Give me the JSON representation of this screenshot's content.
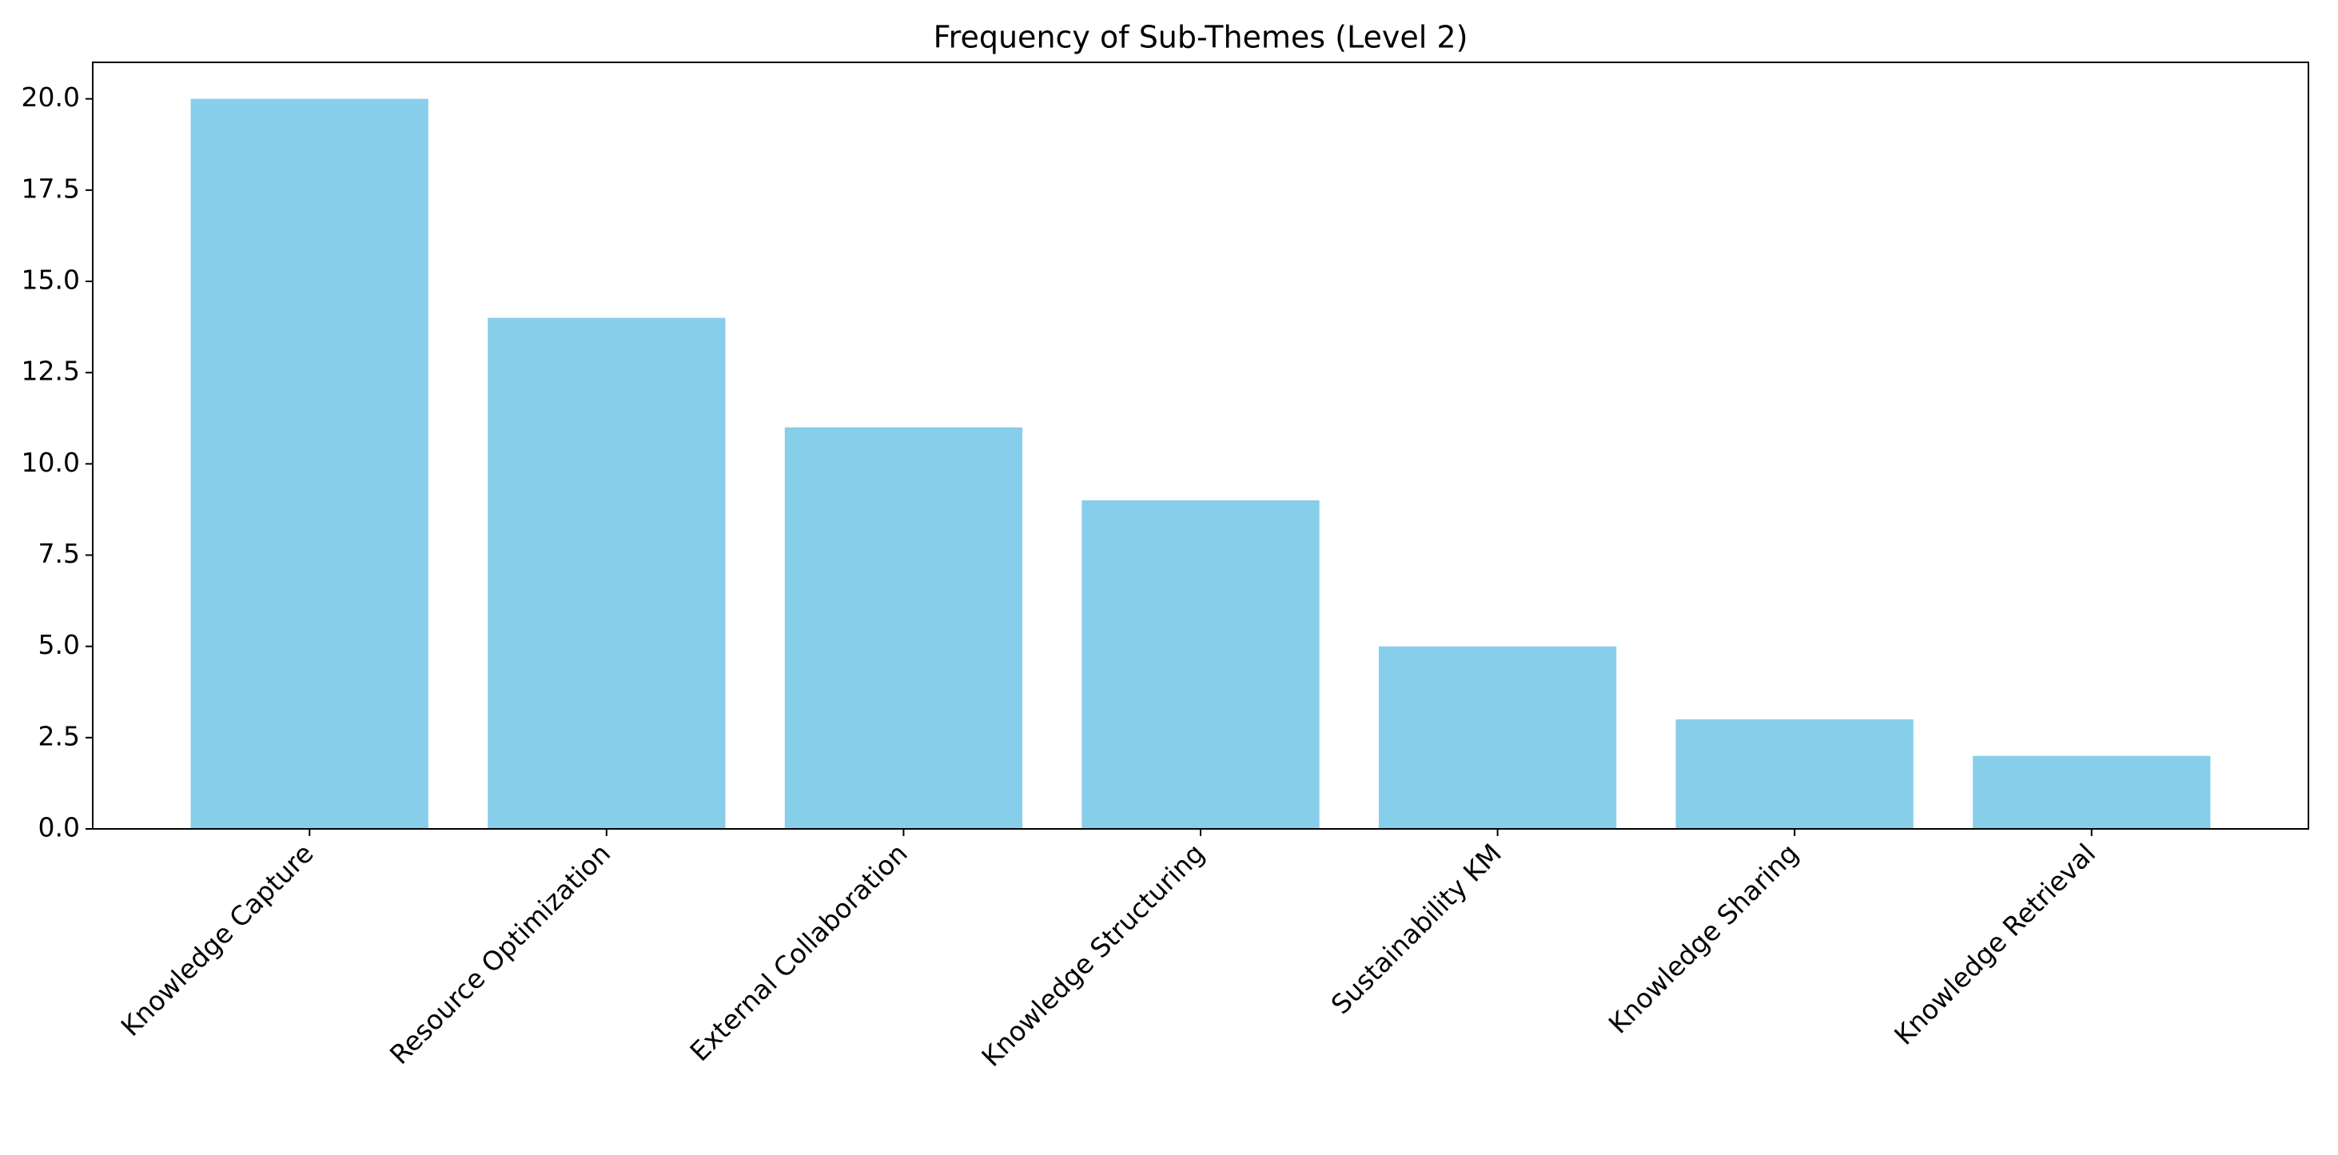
{
  "chart_data": {
    "type": "bar",
    "title": "Frequency of Sub-Themes (Level 2)",
    "categories": [
      "Knowledge Capture",
      "Resource Optimization",
      "External Collaboration",
      "Knowledge Structuring",
      "Sustainability KM",
      "Knowledge Sharing",
      "Knowledge Retrieval"
    ],
    "values": [
      20,
      14,
      11,
      9,
      5,
      3,
      2
    ],
    "color": "#87ceeb",
    "ylim": [
      0,
      21
    ],
    "yticks": [
      {
        "value": 0,
        "label": "0.0"
      },
      2.5,
      {
        "value": 5,
        "label": "5.0"
      },
      7.5,
      {
        "value": 10,
        "label": "10.0"
      },
      12.5,
      {
        "value": 15,
        "label": "15.0"
      },
      17.5,
      {
        "value": 20,
        "label": "20.0"
      }
    ],
    "grid": false
  }
}
